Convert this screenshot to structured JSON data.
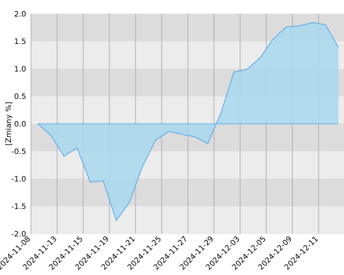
{
  "chart_data": {
    "type": "area",
    "y_label": "[Zmiany %]",
    "x_tick_labels": [
      "2024-11-08",
      "2024-11-13",
      "2024-11-15",
      "2024-11-19",
      "2024-11-21",
      "2024-11-25",
      "2024-11-27",
      "2024-11-29",
      "2024-12-03",
      "2024-12-05",
      "2024-12-09",
      "2024-12-11"
    ],
    "values": [
      0,
      -0.21,
      -0.59,
      -0.44,
      -1.06,
      -1.04,
      -1.76,
      -1.43,
      -0.78,
      -0.3,
      -0.14,
      -0.19,
      -0.24,
      -0.36,
      0.19,
      0.94,
      0.99,
      1.2,
      1.54,
      1.76,
      1.78,
      1.84,
      1.8,
      1.39
    ],
    "color": "#5ea9e6",
    "fill_color": "#a8d8ee",
    "ylim": [
      -2,
      2
    ],
    "yticks": [
      {
        "value": -2,
        "label": "-2.0"
      },
      {
        "value": -1.5,
        "label": "-1.5"
      },
      {
        "value": -1,
        "label": "-1.0"
      },
      {
        "value": -0.5,
        "label": "-0.5"
      },
      {
        "value": 0,
        "label": "0.0"
      },
      {
        "value": 0.5,
        "label": "0.5"
      },
      {
        "value": 1,
        "label": "1.0"
      },
      {
        "value": 1.5,
        "label": "1.5"
      },
      {
        "value": 2,
        "label": "2.0"
      }
    ],
    "grid": true
  }
}
